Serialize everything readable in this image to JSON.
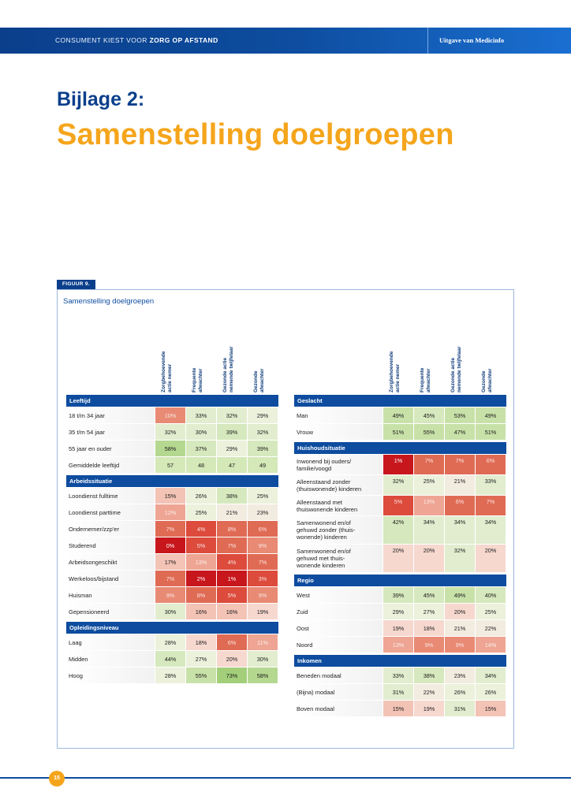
{
  "header": {
    "left_prefix": "CONSUMENT KIEST VOOR ",
    "left_bold": "ZORG OP AFSTAND",
    "right": "Uitgave van Medicinfo"
  },
  "kicker": "Bijlage 2:",
  "title": "Samenstelling doelgroepen",
  "figure": {
    "tag": "FIGUUR 9.",
    "title": "Samenstelling doelgroepen"
  },
  "columns": [
    [
      "Zorgbehoevende",
      "actie nemer"
    ],
    [
      "Frequente",
      "afwachter"
    ],
    [
      "Gezonde actie",
      "nemende twijfelaar"
    ],
    [
      "Gezonde",
      "afwachter"
    ]
  ],
  "colors": {
    "brand_blue": "#0d4c9e",
    "accent_orange": "#f5a51c"
  },
  "left_panel": [
    {
      "section": "Leeftijd",
      "rows": [
        {
          "label": "18 t/m 34 jaar",
          "values": [
            "10%",
            "33%",
            "32%",
            "29%"
          ]
        },
        {
          "label": "35 t/m 54 jaar",
          "values": [
            "32%",
            "30%",
            "39%",
            "32%"
          ]
        },
        {
          "label": "55 jaar en ouder",
          "values": [
            "58%",
            "37%",
            "29%",
            "39%"
          ]
        },
        {
          "label": "Gemiddelde leeftijd",
          "values": [
            "57",
            "48",
            "47",
            "49"
          ]
        }
      ]
    },
    {
      "section": "Arbeidssituatie",
      "rows": [
        {
          "label": "Loondienst fulltime",
          "values": [
            "15%",
            "26%",
            "38%",
            "25%"
          ]
        },
        {
          "label": "Loondienst parttime",
          "values": [
            "12%",
            "25%",
            "21%",
            "23%"
          ]
        },
        {
          "label": "Ondernemer/zzp'er",
          "values": [
            "7%",
            "4%",
            "8%",
            "6%"
          ]
        },
        {
          "label": "Studerend",
          "values": [
            "0%",
            "5%",
            "7%",
            "9%"
          ]
        },
        {
          "label": "Arbeidsongeschikt",
          "values": [
            "17%",
            "13%",
            "4%",
            "7%"
          ]
        },
        {
          "label": "Werkeloos/bijstand",
          "values": [
            "7%",
            "2%",
            "1%",
            "3%"
          ]
        },
        {
          "label": "Huisman",
          "values": [
            "9%",
            "8%",
            "5%",
            "9%"
          ]
        },
        {
          "label": "Gepensioneerd",
          "values": [
            "30%",
            "16%",
            "16%",
            "19%"
          ]
        }
      ]
    },
    {
      "section": "Opleidingsniveau",
      "rows": [
        {
          "label": "Laag",
          "values": [
            "28%",
            "18%",
            "6%",
            "11%"
          ]
        },
        {
          "label": "Midden",
          "values": [
            "44%",
            "27%",
            "20%",
            "30%"
          ]
        },
        {
          "label": "Hoog",
          "values": [
            "28%",
            "55%",
            "73%",
            "58%"
          ]
        }
      ]
    }
  ],
  "right_panel": [
    {
      "section": "Geslacht",
      "rows": [
        {
          "label": "Man",
          "values": [
            "49%",
            "45%",
            "53%",
            "49%"
          ]
        },
        {
          "label": "Vrouw",
          "values": [
            "51%",
            "55%",
            "47%",
            "51%"
          ]
        }
      ]
    },
    {
      "section": "Huishoudsituatie",
      "rows": [
        {
          "label": "Inwonend bij ouders/\nfamilie/voogd",
          "values": [
            "1%",
            "7%",
            "7%",
            "6%"
          ]
        },
        {
          "label": "Alleenstaand zonder\n(thuiswonende) kinderen",
          "values": [
            "32%",
            "25%",
            "21%",
            "33%"
          ]
        },
        {
          "label": "Alleenstaand met\nthuiswonende kinderen",
          "values": [
            "5%",
            "13%",
            "6%",
            "7%"
          ]
        },
        {
          "label": "Samenwonend en/of\ngehuwd zonder (thuis-\nwonende) kinderen",
          "values": [
            "42%",
            "34%",
            "34%",
            "34%"
          ]
        },
        {
          "label": "Samenwonend en/of\ngehuwd met thuis-\nwonende kinderen",
          "values": [
            "20%",
            "20%",
            "32%",
            "20%"
          ]
        }
      ]
    },
    {
      "section": "Regio",
      "rows": [
        {
          "label": "West",
          "values": [
            "39%",
            "45%",
            "49%",
            "40%"
          ]
        },
        {
          "label": "Zuid",
          "values": [
            "29%",
            "27%",
            "20%",
            "25%"
          ]
        },
        {
          "label": "Oost",
          "values": [
            "19%",
            "18%",
            "21%",
            "22%"
          ]
        },
        {
          "label": "Noord",
          "values": [
            "13%",
            "9%",
            "9%",
            "14%"
          ]
        }
      ]
    },
    {
      "section": "Inkomen",
      "rows": [
        {
          "label": "Beneden modaal",
          "values": [
            "33%",
            "38%",
            "23%",
            "34%"
          ]
        },
        {
          "label": "(Bijna) modaal",
          "values": [
            "31%",
            "22%",
            "26%",
            "26%"
          ]
        },
        {
          "label": "Boven modaal",
          "values": [
            "15%",
            "19%",
            "31%",
            "15%"
          ]
        }
      ]
    }
  ],
  "page_number": "15"
}
